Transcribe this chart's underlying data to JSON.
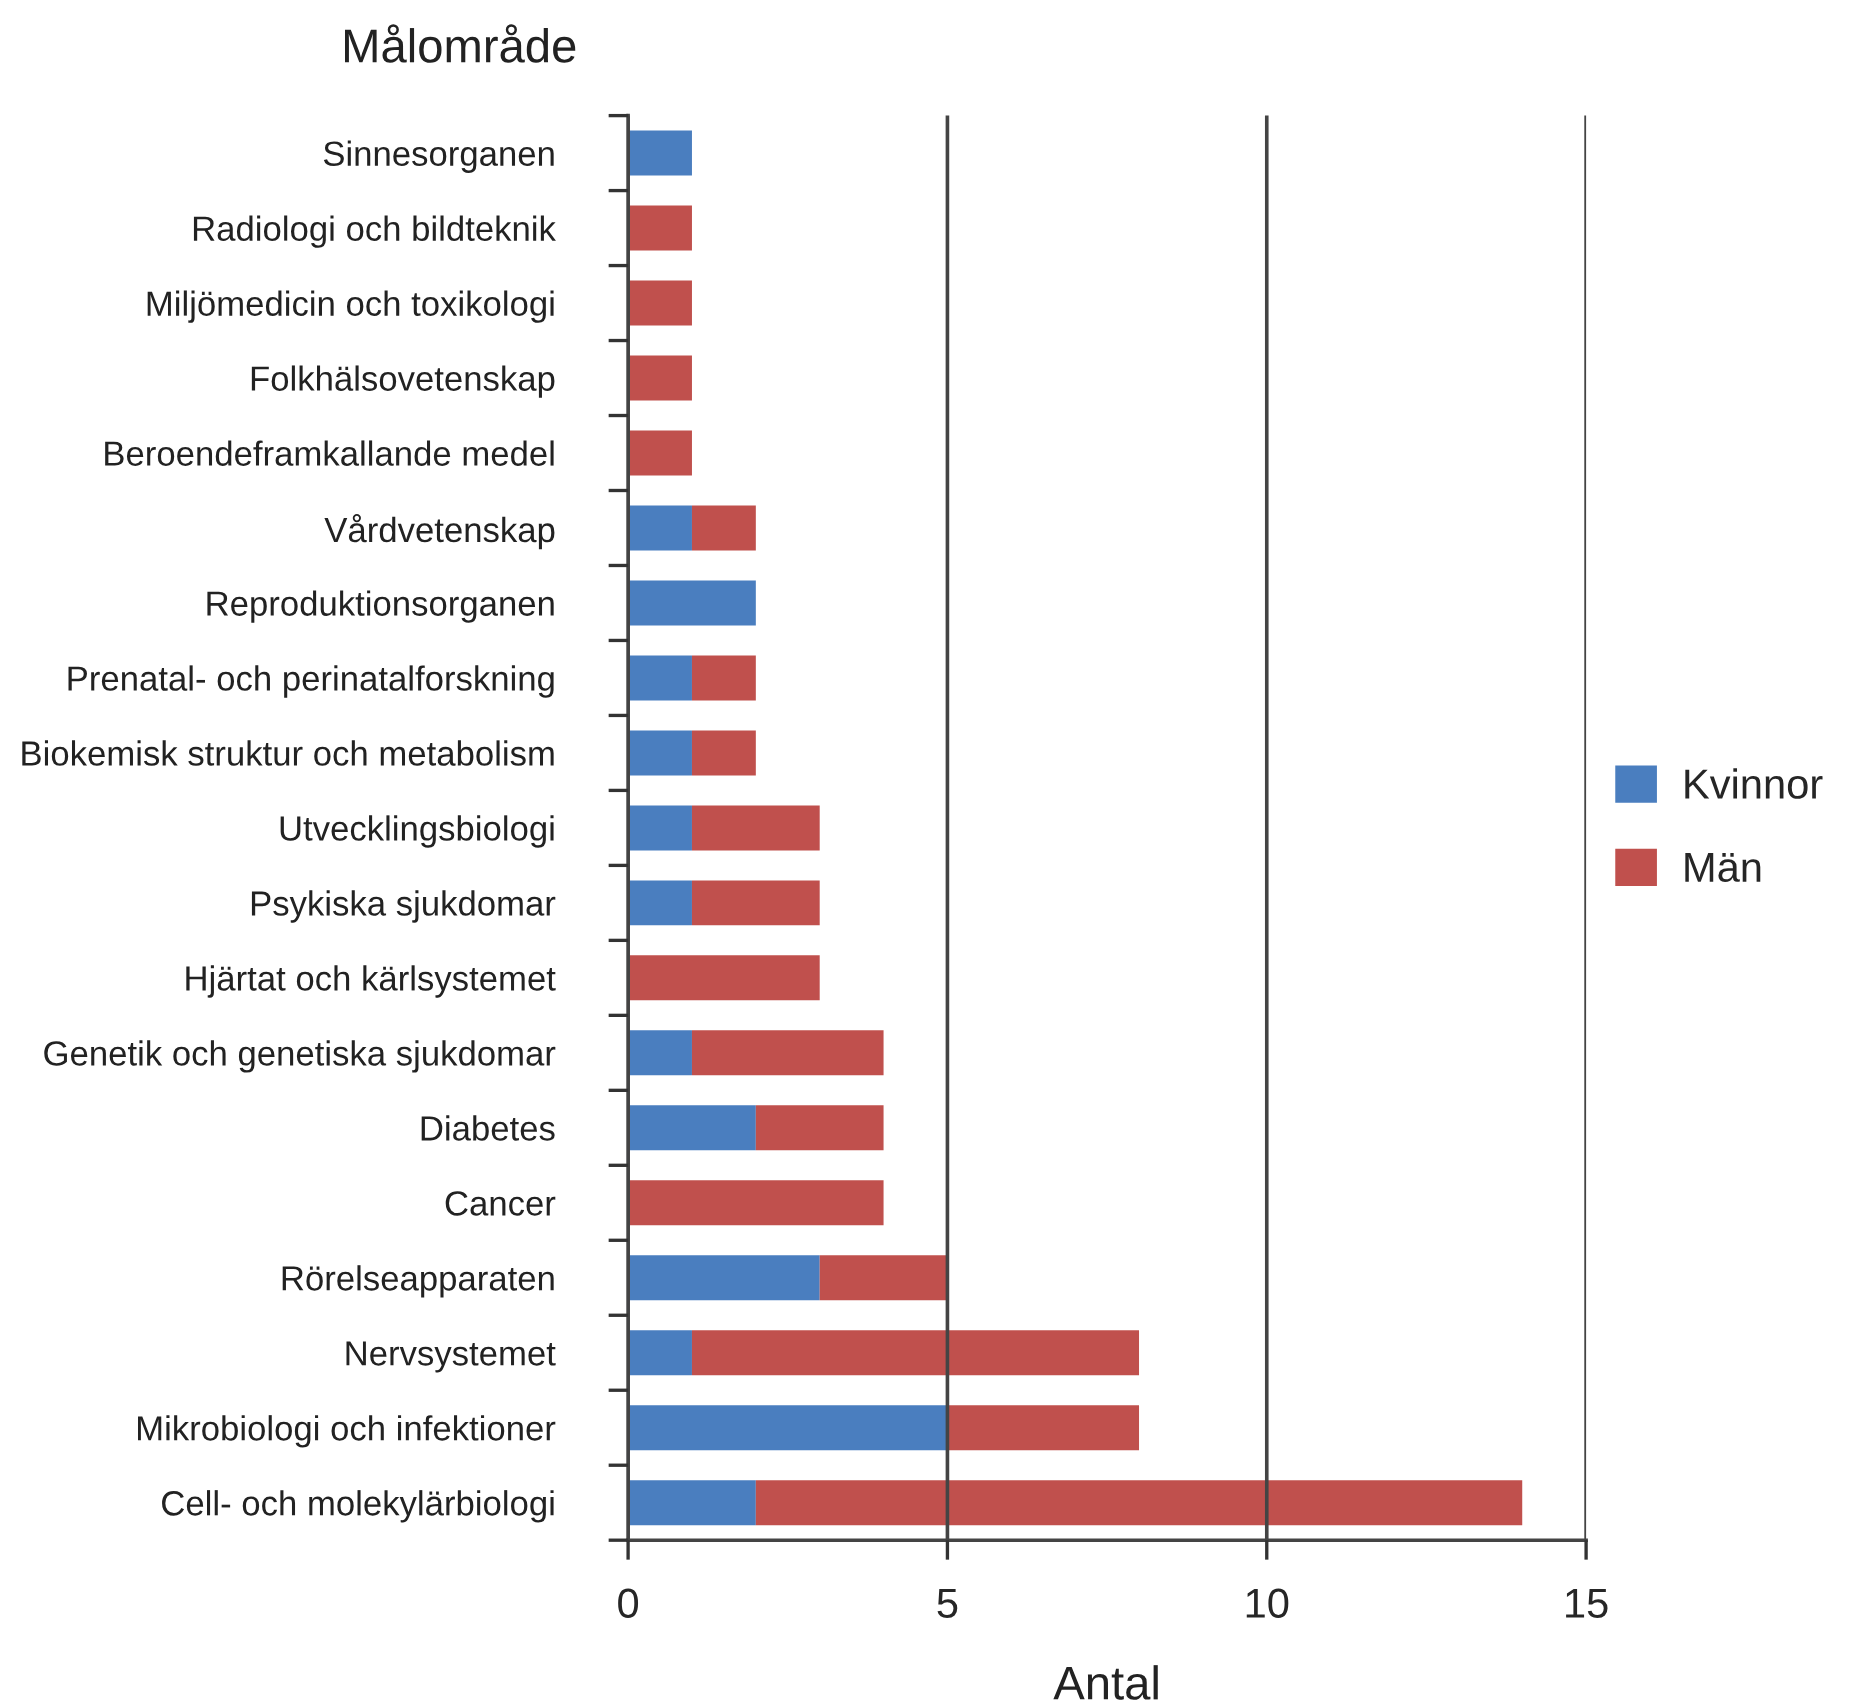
{
  "chart_data": {
    "type": "bar",
    "orientation": "horizontal",
    "stacked": true,
    "ylabel": "Målområde",
    "xlabel": "Antal",
    "categories": [
      "Sinnesorganen",
      "Radiologi och bildteknik",
      "Miljömedicin och toxikologi",
      "Folkhälsovetenskap",
      "Beroendeframkallande medel",
      "Vårdvetenskap",
      "Reproduktionsorganen",
      "Prenatal- och perinatalforskning",
      "Biokemisk struktur och metabolism",
      "Utvecklingsbiologi",
      "Psykiska sjukdomar",
      "Hjärtat och kärlsystemet",
      "Genetik och genetiska sjukdomar",
      "Diabetes",
      "Cancer",
      "Rörelseapparaten",
      "Nervsystemet",
      "Mikrobiologi och infektioner",
      "Cell- och molekylärbiologi"
    ],
    "series": [
      {
        "name": "Kvinnor",
        "color": "#4a7ebf",
        "values": [
          1,
          0,
          0,
          0,
          0,
          1,
          2,
          1,
          1,
          1,
          1,
          0,
          1,
          2,
          0,
          3,
          1,
          5,
          2
        ]
      },
      {
        "name": "Män",
        "color": "#c0504d",
        "values": [
          0,
          1,
          1,
          1,
          1,
          1,
          0,
          1,
          1,
          2,
          2,
          3,
          3,
          2,
          4,
          2,
          7,
          3,
          12
        ]
      }
    ],
    "xlim": [
      0,
      15
    ],
    "xticks": [
      0,
      5,
      10,
      15
    ],
    "grid": "x",
    "legend": "right"
  }
}
